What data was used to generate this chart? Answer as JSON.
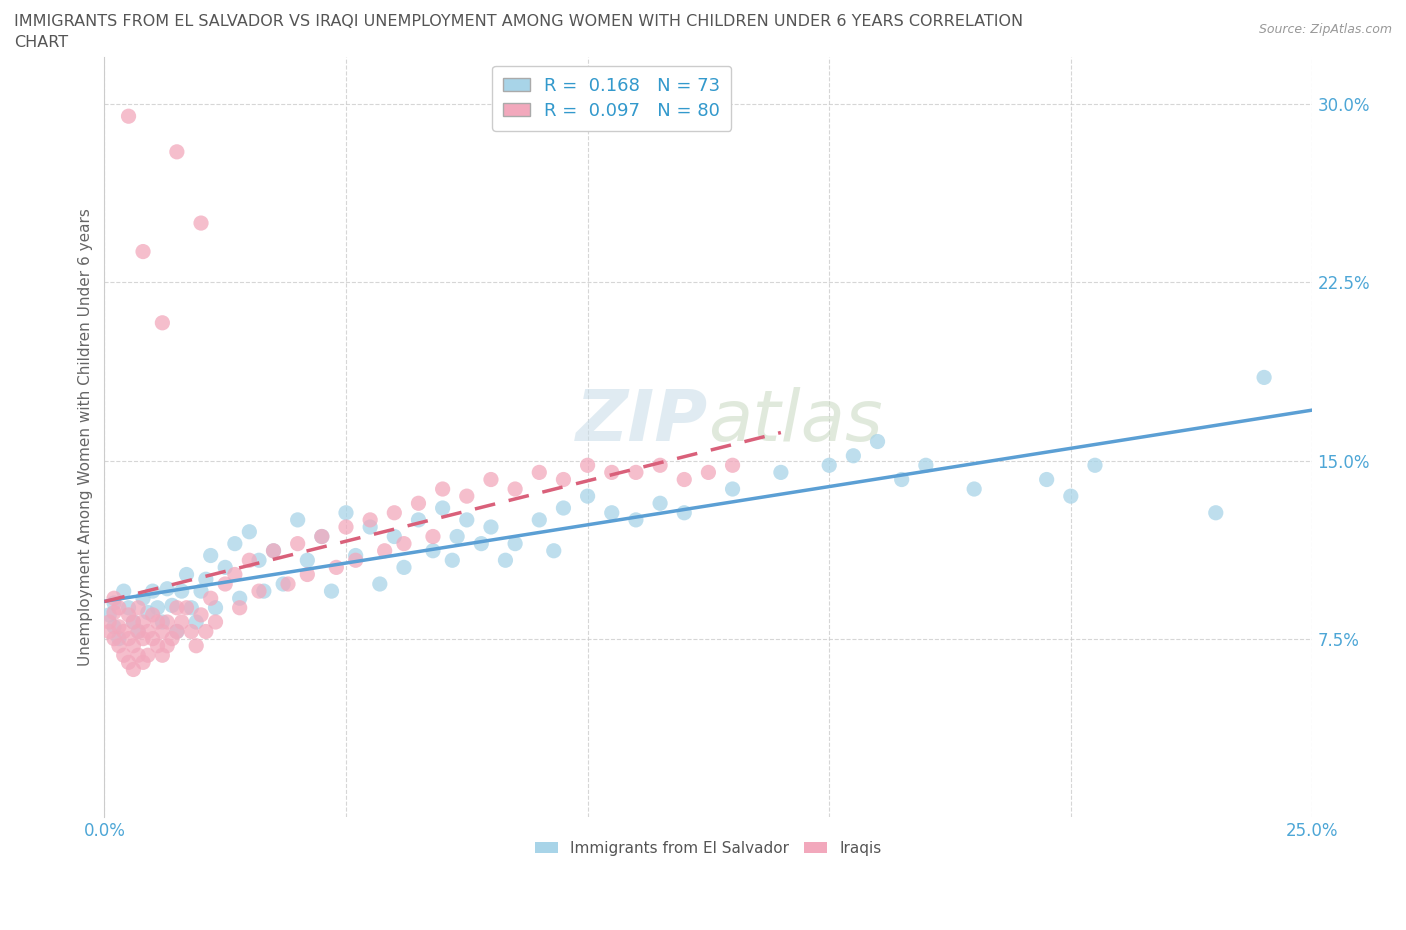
{
  "title_line1": "IMMIGRANTS FROM EL SALVADOR VS IRAQI UNEMPLOYMENT AMONG WOMEN WITH CHILDREN UNDER 6 YEARS CORRELATION",
  "title_line2": "CHART",
  "source": "Source: ZipAtlas.com",
  "ylabel": "Unemployment Among Women with Children Under 6 years",
  "xlim": [
    0.0,
    0.25
  ],
  "ylim": [
    0.0,
    0.32
  ],
  "xtick_positions": [
    0.0,
    0.05,
    0.1,
    0.15,
    0.2,
    0.25
  ],
  "xticklabels": [
    "0.0%",
    "",
    "",
    "",
    "",
    "25.0%"
  ],
  "ytick_positions": [
    0.075,
    0.15,
    0.225,
    0.3
  ],
  "yticklabels": [
    "7.5%",
    "15.0%",
    "22.5%",
    "30.0%"
  ],
  "legend_R1": "0.168",
  "legend_N1": "73",
  "legend_R2": "0.097",
  "legend_N2": "80",
  "color_blue": "#a8d4e8",
  "color_pink": "#f2a8bc",
  "line_color_blue": "#5b9fd4",
  "line_color_pink": "#d9607a",
  "legend_label1": "Immigrants from El Salvador",
  "legend_label2": "Iraqis",
  "background_color": "#ffffff",
  "grid_color": "#cccccc",
  "blue_x": [
    0.001,
    0.002,
    0.002,
    0.003,
    0.004,
    0.005,
    0.006,
    0.007,
    0.008,
    0.009,
    0.01,
    0.011,
    0.012,
    0.013,
    0.014,
    0.015,
    0.016,
    0.017,
    0.018,
    0.019,
    0.02,
    0.021,
    0.022,
    0.023,
    0.025,
    0.027,
    0.028,
    0.03,
    0.032,
    0.033,
    0.035,
    0.037,
    0.04,
    0.042,
    0.045,
    0.047,
    0.05,
    0.052,
    0.055,
    0.057,
    0.06,
    0.062,
    0.065,
    0.068,
    0.07,
    0.072,
    0.073,
    0.075,
    0.078,
    0.08,
    0.083,
    0.085,
    0.09,
    0.093,
    0.095,
    0.1,
    0.105,
    0.11,
    0.115,
    0.12,
    0.13,
    0.14,
    0.15,
    0.155,
    0.16,
    0.165,
    0.17,
    0.18,
    0.195,
    0.2,
    0.205,
    0.23,
    0.24
  ],
  "blue_y": [
    0.085,
    0.09,
    0.08,
    0.075,
    0.095,
    0.088,
    0.082,
    0.078,
    0.092,
    0.086,
    0.095,
    0.088,
    0.082,
    0.096,
    0.089,
    0.078,
    0.095,
    0.102,
    0.088,
    0.082,
    0.095,
    0.1,
    0.11,
    0.088,
    0.105,
    0.115,
    0.092,
    0.12,
    0.108,
    0.095,
    0.112,
    0.098,
    0.125,
    0.108,
    0.118,
    0.095,
    0.128,
    0.11,
    0.122,
    0.098,
    0.118,
    0.105,
    0.125,
    0.112,
    0.13,
    0.108,
    0.118,
    0.125,
    0.115,
    0.122,
    0.108,
    0.115,
    0.125,
    0.112,
    0.13,
    0.135,
    0.128,
    0.125,
    0.132,
    0.128,
    0.138,
    0.145,
    0.148,
    0.152,
    0.158,
    0.142,
    0.148,
    0.138,
    0.142,
    0.135,
    0.148,
    0.128,
    0.185
  ],
  "pink_x": [
    0.001,
    0.001,
    0.002,
    0.002,
    0.002,
    0.003,
    0.003,
    0.003,
    0.004,
    0.004,
    0.005,
    0.005,
    0.005,
    0.006,
    0.006,
    0.006,
    0.007,
    0.007,
    0.007,
    0.008,
    0.008,
    0.008,
    0.009,
    0.009,
    0.01,
    0.01,
    0.011,
    0.011,
    0.012,
    0.012,
    0.013,
    0.013,
    0.014,
    0.015,
    0.015,
    0.016,
    0.017,
    0.018,
    0.019,
    0.02,
    0.021,
    0.022,
    0.023,
    0.025,
    0.027,
    0.028,
    0.03,
    0.032,
    0.035,
    0.038,
    0.04,
    0.042,
    0.045,
    0.048,
    0.05,
    0.052,
    0.055,
    0.058,
    0.06,
    0.062,
    0.065,
    0.068,
    0.07,
    0.075,
    0.08,
    0.085,
    0.09,
    0.095,
    0.1,
    0.105,
    0.11,
    0.115,
    0.12,
    0.125,
    0.13,
    0.015,
    0.02,
    0.005,
    0.008,
    0.012
  ],
  "pink_y": [
    0.082,
    0.078,
    0.086,
    0.075,
    0.092,
    0.08,
    0.072,
    0.088,
    0.078,
    0.068,
    0.085,
    0.075,
    0.065,
    0.082,
    0.072,
    0.062,
    0.088,
    0.078,
    0.068,
    0.082,
    0.075,
    0.065,
    0.078,
    0.068,
    0.085,
    0.075,
    0.082,
    0.072,
    0.078,
    0.068,
    0.082,
    0.072,
    0.075,
    0.088,
    0.078,
    0.082,
    0.088,
    0.078,
    0.072,
    0.085,
    0.078,
    0.092,
    0.082,
    0.098,
    0.102,
    0.088,
    0.108,
    0.095,
    0.112,
    0.098,
    0.115,
    0.102,
    0.118,
    0.105,
    0.122,
    0.108,
    0.125,
    0.112,
    0.128,
    0.115,
    0.132,
    0.118,
    0.138,
    0.135,
    0.142,
    0.138,
    0.145,
    0.142,
    0.148,
    0.145,
    0.145,
    0.148,
    0.142,
    0.145,
    0.148,
    0.28,
    0.25,
    0.295,
    0.238,
    0.208
  ]
}
